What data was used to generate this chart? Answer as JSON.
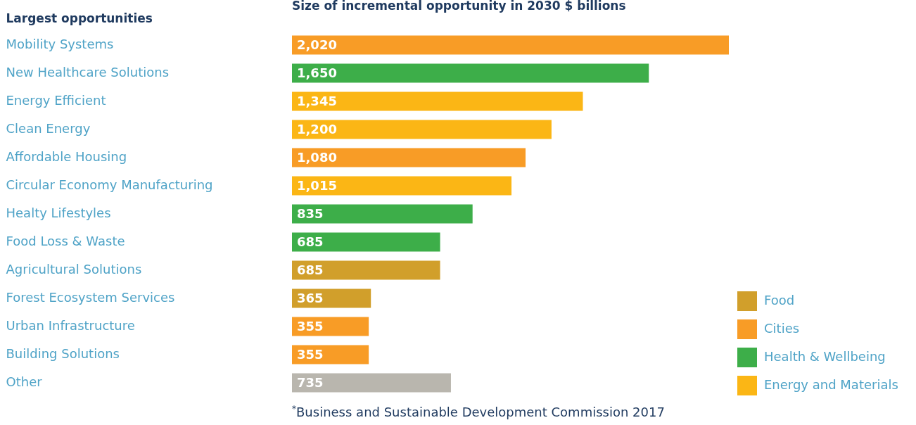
{
  "chart_data": {
    "type": "bar",
    "orientation": "horizontal",
    "title": "Size of incremental opportunity in 2030 $ billions",
    "ylabel": "Largest opportunities",
    "categories": [
      "Mobility Systems",
      "New Healthcare Solutions",
      "Energy Efficient",
      "Clean Energy",
      "Affordable Housing",
      "Circular Economy Manufacturing",
      "Healty Lifestyles",
      "Food Loss & Waste",
      "Agricultural Solutions",
      "Forest Ecosystem Services",
      "Urban Infrastructure",
      "Building Solutions",
      "Other"
    ],
    "series": [
      {
        "name": "Food",
        "color": "#d19f2b",
        "values": [
          null,
          null,
          null,
          null,
          null,
          null,
          null,
          null,
          685,
          365,
          null,
          null,
          null
        ],
        "value_labels": [
          null,
          null,
          null,
          null,
          null,
          null,
          null,
          null,
          "685",
          "365",
          null,
          null,
          null
        ]
      },
      {
        "name": "Cities",
        "color": "#f89c26",
        "values": [
          2020,
          null,
          null,
          null,
          1080,
          null,
          null,
          null,
          null,
          null,
          355,
          355,
          null
        ],
        "value_labels": [
          "2,020",
          null,
          null,
          null,
          "1,080",
          null,
          null,
          null,
          null,
          null,
          "355",
          "355",
          null
        ]
      },
      {
        "name": "Health & Wellbeing",
        "color": "#3dae49",
        "values": [
          null,
          1650,
          null,
          null,
          null,
          null,
          835,
          685,
          null,
          null,
          null,
          null,
          null
        ],
        "value_labels": [
          null,
          "1,650",
          null,
          null,
          null,
          null,
          "835",
          "685",
          null,
          null,
          null,
          null,
          null
        ]
      },
      {
        "name": "Energy and Materials",
        "color": "#fbb615",
        "values": [
          null,
          null,
          1345,
          1200,
          null,
          1015,
          null,
          null,
          null,
          null,
          null,
          null,
          null
        ],
        "value_labels": [
          null,
          null,
          "1,345",
          "1,200",
          null,
          "1,015",
          null,
          null,
          null,
          null,
          null,
          null,
          null
        ]
      },
      {
        "color": "#b9b6ae",
        "values": [
          null,
          null,
          null,
          null,
          null,
          null,
          null,
          null,
          null,
          null,
          null,
          null,
          735
        ],
        "value_labels": [
          null,
          null,
          null,
          null,
          null,
          null,
          null,
          null,
          null,
          null,
          null,
          null,
          "735"
        ]
      }
    ],
    "legend": "bottom right",
    "grid": false,
    "annotations": [
      "$^{*}$Business and Sustainable Development Commission 2017"
    ]
  }
}
